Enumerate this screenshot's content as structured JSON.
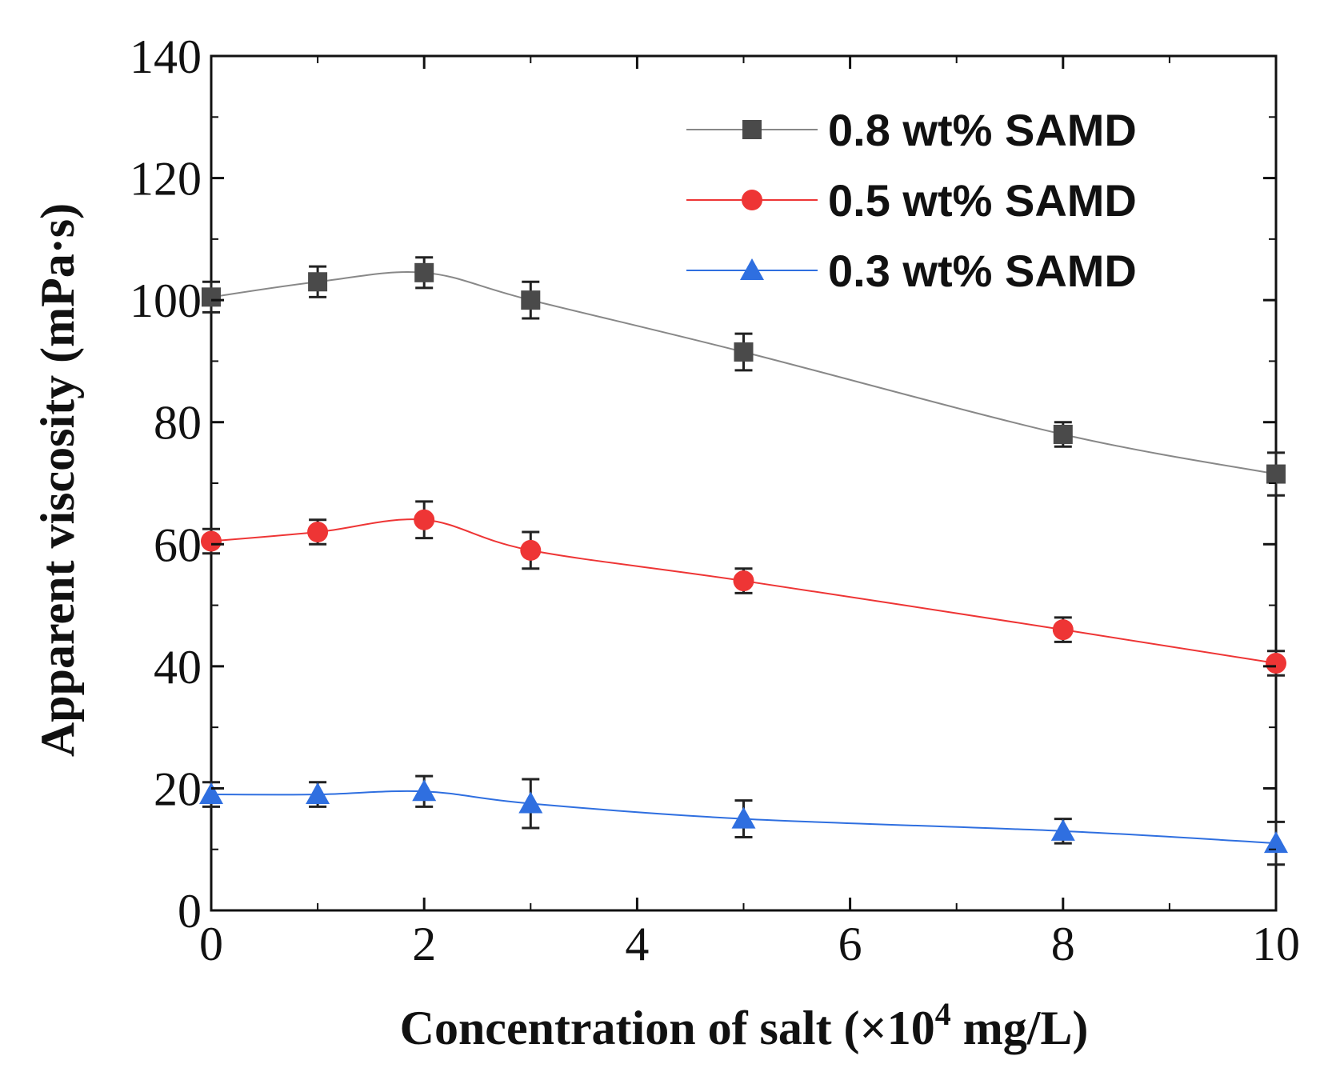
{
  "chart_data": {
    "type": "line",
    "title": "",
    "xlabel": "Concentration of salt (×10",
    "xlabel_sup": "4",
    "xlabel_suffix": " mg/L)",
    "ylabel": "Apparent viscosity (mPa·s)",
    "xlim": [
      0,
      10
    ],
    "ylim": [
      0,
      140
    ],
    "x_ticks": [
      "0",
      "2",
      "4",
      "6",
      "8",
      "10"
    ],
    "y_ticks": [
      "0",
      "20",
      "40",
      "60",
      "80",
      "100",
      "120",
      "140"
    ],
    "x": [
      0,
      1,
      2,
      3,
      5,
      8,
      10
    ],
    "legend_position": "top-right",
    "grid": false,
    "series": [
      {
        "name": "0.8 wt% SAMD",
        "marker": "square",
        "color": "#4a4a4a",
        "line_color": "#888888",
        "values": [
          100.5,
          103,
          104.5,
          100,
          91.5,
          78,
          71.5
        ],
        "errors": [
          2.5,
          2.5,
          2.5,
          3,
          3,
          2,
          3.5
        ]
      },
      {
        "name": "0.5 wt% SAMD",
        "marker": "circle",
        "color": "#ee3535",
        "line_color": "#ee3535",
        "values": [
          60.5,
          62,
          64,
          59,
          54,
          46,
          40.5
        ],
        "errors": [
          2,
          2,
          3,
          3,
          2,
          2,
          2
        ]
      },
      {
        "name": "0.3 wt% SAMD",
        "marker": "triangle",
        "color": "#2f6fe0",
        "line_color": "#2f6fe0",
        "values": [
          19,
          19,
          19.5,
          17.5,
          15,
          13,
          11
        ],
        "errors": [
          2,
          2,
          2.5,
          4,
          3,
          2,
          3.5
        ]
      }
    ]
  }
}
